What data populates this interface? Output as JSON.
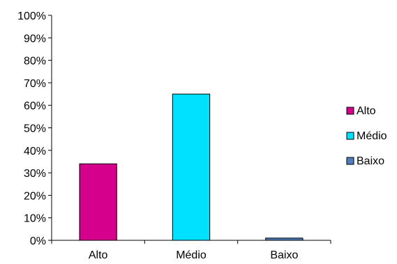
{
  "chart_data": {
    "type": "bar",
    "categories": [
      "Alto",
      "Médio",
      "Baixo"
    ],
    "values": [
      0.34,
      0.65,
      0.01
    ],
    "colors": [
      "#d5008c",
      "#00e0ff",
      "#4f7fbf"
    ],
    "ylim": [
      0,
      1
    ],
    "y_ticks": [
      "0%",
      "10%",
      "20%",
      "30%",
      "40%",
      "50%",
      "60%",
      "70%",
      "80%",
      "90%",
      "100%"
    ],
    "grid": false,
    "legend": {
      "position": "right",
      "entries": [
        "Alto",
        "Médio",
        "Baixo"
      ]
    }
  }
}
